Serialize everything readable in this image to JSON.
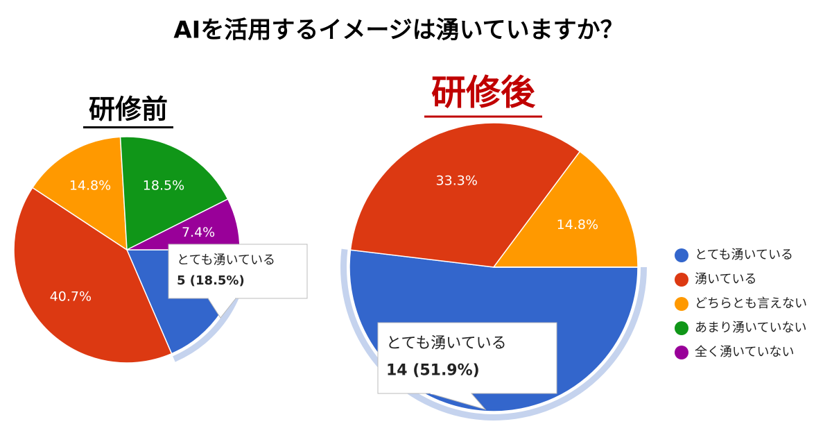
{
  "title": "AIを活用するイメージは湧いていますか？",
  "legend": {
    "position": "right"
  },
  "chart_data": [
    {
      "type": "pie",
      "title": "研修前",
      "categories": [
        "とても湧いている",
        "湧いている",
        "どちらとも言えない",
        "あまり湧いていない",
        "全く湧いていない"
      ],
      "colors": [
        "#3366cc",
        "#dc3912",
        "#ff9900",
        "#109618",
        "#990099"
      ],
      "values": [
        18.5,
        40.7,
        14.8,
        18.5,
        7.4
      ],
      "value_labels": [
        null,
        "40.7%",
        "14.8%",
        "18.5%",
        "7.4%"
      ],
      "tooltip": {
        "name": "とても湧いている",
        "text": "5 (18.5%)"
      }
    },
    {
      "type": "pie",
      "title": "研修後",
      "categories": [
        "とても湧いている",
        "湧いている",
        "どちらとも言えない",
        "あまり湧いていない",
        "全く湧いていない"
      ],
      "colors": [
        "#3366cc",
        "#dc3912",
        "#ff9900",
        "#109618",
        "#990099"
      ],
      "values": [
        51.9,
        33.3,
        14.8,
        0,
        0
      ],
      "value_labels": [
        null,
        "33.3%",
        "14.8%",
        null,
        null
      ],
      "tooltip": {
        "name": "とても湧いている",
        "text": "14 (51.9%)"
      }
    }
  ]
}
